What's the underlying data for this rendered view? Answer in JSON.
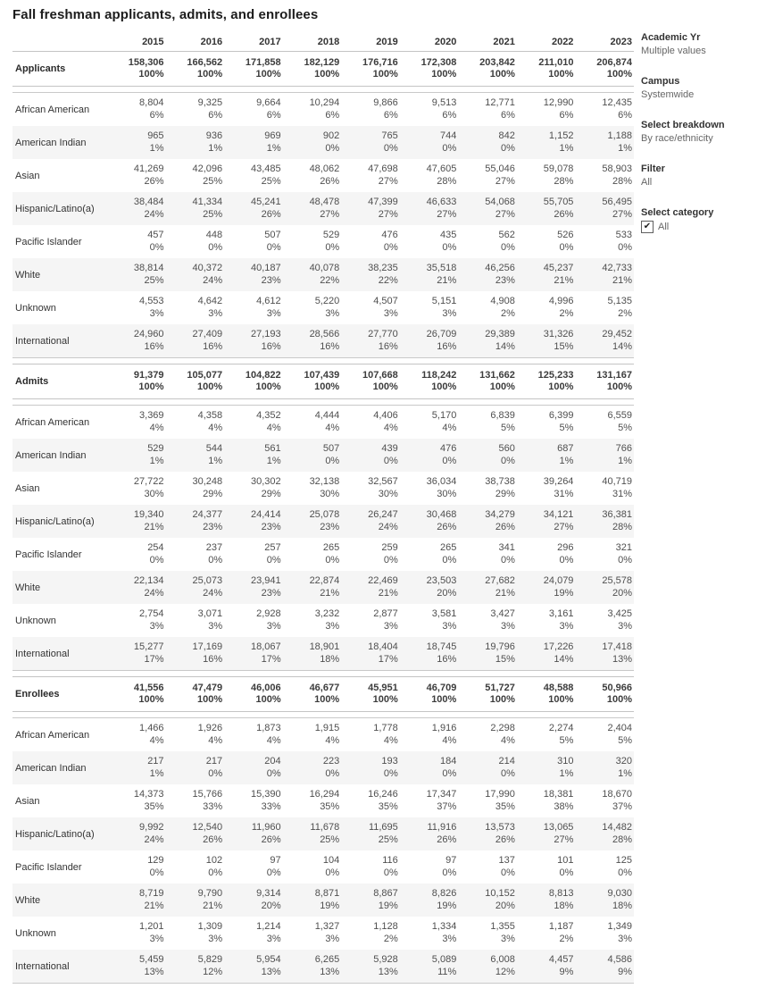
{
  "title": "Fall freshman applicants, admits, and enrollees",
  "years": [
    "2015",
    "2016",
    "2017",
    "2018",
    "2019",
    "2020",
    "2021",
    "2022",
    "2023"
  ],
  "sections": [
    {
      "label": "Applicants",
      "values": [
        "158,306",
        "166,562",
        "171,858",
        "182,129",
        "176,716",
        "172,308",
        "203,842",
        "211,010",
        "206,874"
      ],
      "pcts": [
        "100%",
        "100%",
        "100%",
        "100%",
        "100%",
        "100%",
        "100%",
        "100%",
        "100%"
      ],
      "rows": [
        {
          "label": "African American",
          "values": [
            "8,804",
            "9,325",
            "9,664",
            "10,294",
            "9,866",
            "9,513",
            "12,771",
            "12,990",
            "12,435"
          ],
          "pcts": [
            "6%",
            "6%",
            "6%",
            "6%",
            "6%",
            "6%",
            "6%",
            "6%",
            "6%"
          ]
        },
        {
          "label": "American Indian",
          "values": [
            "965",
            "936",
            "969",
            "902",
            "765",
            "744",
            "842",
            "1,152",
            "1,188"
          ],
          "pcts": [
            "1%",
            "1%",
            "1%",
            "0%",
            "0%",
            "0%",
            "0%",
            "1%",
            "1%"
          ]
        },
        {
          "label": "Asian",
          "values": [
            "41,269",
            "42,096",
            "43,485",
            "48,062",
            "47,698",
            "47,605",
            "55,046",
            "59,078",
            "58,903"
          ],
          "pcts": [
            "26%",
            "25%",
            "25%",
            "26%",
            "27%",
            "28%",
            "27%",
            "28%",
            "28%"
          ]
        },
        {
          "label": "Hispanic/Latino(a)",
          "values": [
            "38,484",
            "41,334",
            "45,241",
            "48,478",
            "47,399",
            "46,633",
            "54,068",
            "55,705",
            "56,495"
          ],
          "pcts": [
            "24%",
            "25%",
            "26%",
            "27%",
            "27%",
            "27%",
            "27%",
            "26%",
            "27%"
          ]
        },
        {
          "label": "Pacific Islander",
          "values": [
            "457",
            "448",
            "507",
            "529",
            "476",
            "435",
            "562",
            "526",
            "533"
          ],
          "pcts": [
            "0%",
            "0%",
            "0%",
            "0%",
            "0%",
            "0%",
            "0%",
            "0%",
            "0%"
          ]
        },
        {
          "label": "White",
          "values": [
            "38,814",
            "40,372",
            "40,187",
            "40,078",
            "38,235",
            "35,518",
            "46,256",
            "45,237",
            "42,733"
          ],
          "pcts": [
            "25%",
            "24%",
            "23%",
            "22%",
            "22%",
            "21%",
            "23%",
            "21%",
            "21%"
          ]
        },
        {
          "label": "Unknown",
          "values": [
            "4,553",
            "4,642",
            "4,612",
            "5,220",
            "4,507",
            "5,151",
            "4,908",
            "4,996",
            "5,135"
          ],
          "pcts": [
            "3%",
            "3%",
            "3%",
            "3%",
            "3%",
            "3%",
            "2%",
            "2%",
            "2%"
          ]
        },
        {
          "label": "International",
          "values": [
            "24,960",
            "27,409",
            "27,193",
            "28,566",
            "27,770",
            "26,709",
            "29,389",
            "31,326",
            "29,452"
          ],
          "pcts": [
            "16%",
            "16%",
            "16%",
            "16%",
            "16%",
            "16%",
            "14%",
            "15%",
            "14%"
          ]
        }
      ]
    },
    {
      "label": "Admits",
      "values": [
        "91,379",
        "105,077",
        "104,822",
        "107,439",
        "107,668",
        "118,242",
        "131,662",
        "125,233",
        "131,167"
      ],
      "pcts": [
        "100%",
        "100%",
        "100%",
        "100%",
        "100%",
        "100%",
        "100%",
        "100%",
        "100%"
      ],
      "rows": [
        {
          "label": "African American",
          "values": [
            "3,369",
            "4,358",
            "4,352",
            "4,444",
            "4,406",
            "5,170",
            "6,839",
            "6,399",
            "6,559"
          ],
          "pcts": [
            "4%",
            "4%",
            "4%",
            "4%",
            "4%",
            "4%",
            "5%",
            "5%",
            "5%"
          ]
        },
        {
          "label": "American Indian",
          "values": [
            "529",
            "544",
            "561",
            "507",
            "439",
            "476",
            "560",
            "687",
            "766"
          ],
          "pcts": [
            "1%",
            "1%",
            "1%",
            "0%",
            "0%",
            "0%",
            "0%",
            "1%",
            "1%"
          ]
        },
        {
          "label": "Asian",
          "values": [
            "27,722",
            "30,248",
            "30,302",
            "32,138",
            "32,567",
            "36,034",
            "38,738",
            "39,264",
            "40,719"
          ],
          "pcts": [
            "30%",
            "29%",
            "29%",
            "30%",
            "30%",
            "30%",
            "29%",
            "31%",
            "31%"
          ]
        },
        {
          "label": "Hispanic/Latino(a)",
          "values": [
            "19,340",
            "24,377",
            "24,414",
            "25,078",
            "26,247",
            "30,468",
            "34,279",
            "34,121",
            "36,381"
          ],
          "pcts": [
            "21%",
            "23%",
            "23%",
            "23%",
            "24%",
            "26%",
            "26%",
            "27%",
            "28%"
          ]
        },
        {
          "label": "Pacific Islander",
          "values": [
            "254",
            "237",
            "257",
            "265",
            "259",
            "265",
            "341",
            "296",
            "321"
          ],
          "pcts": [
            "0%",
            "0%",
            "0%",
            "0%",
            "0%",
            "0%",
            "0%",
            "0%",
            "0%"
          ]
        },
        {
          "label": "White",
          "values": [
            "22,134",
            "25,073",
            "23,941",
            "22,874",
            "22,469",
            "23,503",
            "27,682",
            "24,079",
            "25,578"
          ],
          "pcts": [
            "24%",
            "24%",
            "23%",
            "21%",
            "21%",
            "20%",
            "21%",
            "19%",
            "20%"
          ]
        },
        {
          "label": "Unknown",
          "values": [
            "2,754",
            "3,071",
            "2,928",
            "3,232",
            "2,877",
            "3,581",
            "3,427",
            "3,161",
            "3,425"
          ],
          "pcts": [
            "3%",
            "3%",
            "3%",
            "3%",
            "3%",
            "3%",
            "3%",
            "3%",
            "3%"
          ]
        },
        {
          "label": "International",
          "values": [
            "15,277",
            "17,169",
            "18,067",
            "18,901",
            "18,404",
            "18,745",
            "19,796",
            "17,226",
            "17,418"
          ],
          "pcts": [
            "17%",
            "16%",
            "17%",
            "18%",
            "17%",
            "16%",
            "15%",
            "14%",
            "13%"
          ]
        }
      ]
    },
    {
      "label": "Enrollees",
      "values": [
        "41,556",
        "47,479",
        "46,006",
        "46,677",
        "45,951",
        "46,709",
        "51,727",
        "48,588",
        "50,966"
      ],
      "pcts": [
        "100%",
        "100%",
        "100%",
        "100%",
        "100%",
        "100%",
        "100%",
        "100%",
        "100%"
      ],
      "rows": [
        {
          "label": "African American",
          "values": [
            "1,466",
            "1,926",
            "1,873",
            "1,915",
            "1,778",
            "1,916",
            "2,298",
            "2,274",
            "2,404"
          ],
          "pcts": [
            "4%",
            "4%",
            "4%",
            "4%",
            "4%",
            "4%",
            "4%",
            "5%",
            "5%"
          ]
        },
        {
          "label": "American Indian",
          "values": [
            "217",
            "217",
            "204",
            "223",
            "193",
            "184",
            "214",
            "310",
            "320"
          ],
          "pcts": [
            "1%",
            "0%",
            "0%",
            "0%",
            "0%",
            "0%",
            "0%",
            "1%",
            "1%"
          ]
        },
        {
          "label": "Asian",
          "values": [
            "14,373",
            "15,766",
            "15,390",
            "16,294",
            "16,246",
            "17,347",
            "17,990",
            "18,381",
            "18,670"
          ],
          "pcts": [
            "35%",
            "33%",
            "33%",
            "35%",
            "35%",
            "37%",
            "35%",
            "38%",
            "37%"
          ]
        },
        {
          "label": "Hispanic/Latino(a)",
          "values": [
            "9,992",
            "12,540",
            "11,960",
            "11,678",
            "11,695",
            "11,916",
            "13,573",
            "13,065",
            "14,482"
          ],
          "pcts": [
            "24%",
            "26%",
            "26%",
            "25%",
            "25%",
            "26%",
            "26%",
            "27%",
            "28%"
          ]
        },
        {
          "label": "Pacific Islander",
          "values": [
            "129",
            "102",
            "97",
            "104",
            "116",
            "97",
            "137",
            "101",
            "125"
          ],
          "pcts": [
            "0%",
            "0%",
            "0%",
            "0%",
            "0%",
            "0%",
            "0%",
            "0%",
            "0%"
          ]
        },
        {
          "label": "White",
          "values": [
            "8,719",
            "9,790",
            "9,314",
            "8,871",
            "8,867",
            "8,826",
            "10,152",
            "8,813",
            "9,030"
          ],
          "pcts": [
            "21%",
            "21%",
            "20%",
            "19%",
            "19%",
            "19%",
            "20%",
            "18%",
            "18%"
          ]
        },
        {
          "label": "Unknown",
          "values": [
            "1,201",
            "1,309",
            "1,214",
            "1,327",
            "1,128",
            "1,334",
            "1,355",
            "1,187",
            "1,349"
          ],
          "pcts": [
            "3%",
            "3%",
            "3%",
            "3%",
            "2%",
            "3%",
            "3%",
            "2%",
            "3%"
          ]
        },
        {
          "label": "International",
          "values": [
            "5,459",
            "5,829",
            "5,954",
            "6,265",
            "5,928",
            "5,089",
            "6,008",
            "4,457",
            "4,586"
          ],
          "pcts": [
            "13%",
            "12%",
            "13%",
            "13%",
            "13%",
            "11%",
            "12%",
            "9%",
            "9%"
          ]
        }
      ]
    }
  ],
  "sidebar": {
    "groups": [
      {
        "label": "Academic Yr",
        "value": "Multiple values"
      },
      {
        "label": "Campus",
        "value": "Systemwide"
      },
      {
        "label": "Select breakdown",
        "value": "By race/ethnicity"
      },
      {
        "label": "Filter",
        "value": "All"
      },
      {
        "label": "Select category",
        "value": "All",
        "checkbox": true,
        "checked": true
      }
    ],
    "check_glyph": "✔"
  },
  "colors": {
    "alt_row_bg": "#f5f5f5",
    "rule": "#c4c4c4",
    "number_text": "#4f4f4f",
    "label_text": "#333333"
  }
}
